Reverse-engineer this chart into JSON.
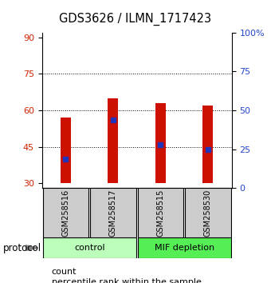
{
  "title": "GDS3626 / ILMN_1717423",
  "samples": [
    "GSM258516",
    "GSM258517",
    "GSM258515",
    "GSM258530"
  ],
  "bar_bottom": 30,
  "bar_tops": [
    57,
    65,
    63,
    62
  ],
  "percentile_values": [
    40,
    56,
    46,
    44
  ],
  "ylim_left": [
    28,
    92
  ],
  "ylim_right": [
    0,
    100
  ],
  "yticks_left": [
    30,
    45,
    60,
    75,
    90
  ],
  "yticks_right": [
    0,
    25,
    50,
    75,
    100
  ],
  "ytick_right_labels": [
    "0",
    "25",
    "50",
    "75",
    "100%"
  ],
  "bar_color": "#cc1100",
  "percentile_color": "#2233bb",
  "bg_color": "#ffffff",
  "sample_bg": "#cccccc",
  "left_tick_color": "#cc2200",
  "right_tick_color": "#2244cc",
  "ctrl_color": "#bbffbb",
  "mif_color": "#55ee55"
}
